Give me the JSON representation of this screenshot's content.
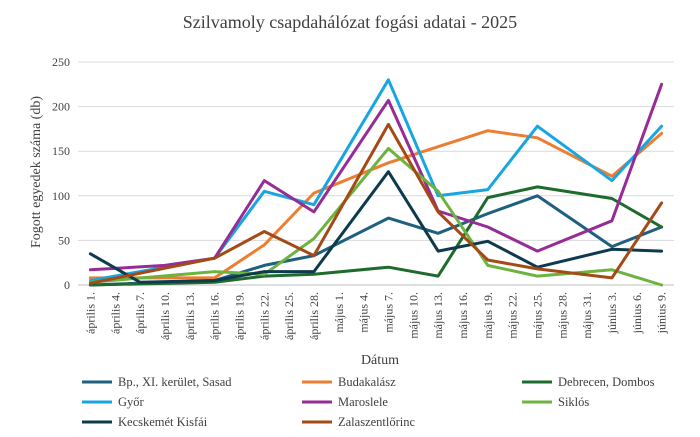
{
  "chart_data": {
    "type": "line",
    "title": "Szilvamoly csapdahálózat fogási adatai - 2025",
    "xlabel": "Dátum",
    "ylabel": "Fogott egyedek száma (db)",
    "ylim": [
      0,
      250
    ],
    "yticks": [
      0,
      50,
      100,
      150,
      200,
      250
    ],
    "grid": true,
    "legend_position": "bottom",
    "categories": [
      "április 1.",
      "április 4.",
      "április 7.",
      "április 10.",
      "április 13.",
      "április 16.",
      "április 19.",
      "április 22.",
      "április 25.",
      "április 28.",
      "május 1.",
      "május 4.",
      "május 7.",
      "május 10.",
      "május 13.",
      "május 16.",
      "május 19.",
      "május 22.",
      "május 25.",
      "május 28.",
      "május 31.",
      "június 3.",
      "június 6.",
      "június 9."
    ],
    "series": [
      {
        "name": "Bp., XI. kerület, Sasad",
        "color": "#1f5f7f",
        "points": [
          [
            0,
            0
          ],
          [
            5,
            5
          ],
          [
            7,
            22
          ],
          [
            9,
            33
          ],
          [
            12,
            75
          ],
          [
            14,
            58
          ],
          [
            16,
            80
          ],
          [
            18,
            100
          ],
          [
            21,
            43
          ],
          [
            23,
            65
          ]
        ]
      },
      {
        "name": "Budakalász",
        "color": "#ed7d31",
        "points": [
          [
            0,
            8
          ],
          [
            5,
            8
          ],
          [
            7,
            45
          ],
          [
            9,
            103
          ],
          [
            12,
            137
          ],
          [
            14,
            155
          ],
          [
            16,
            173
          ],
          [
            18,
            165
          ],
          [
            21,
            122
          ],
          [
            23,
            170
          ]
        ]
      },
      {
        "name": "Debrecen, Dombos",
        "color": "#1e6b2d",
        "points": [
          [
            0,
            0
          ],
          [
            5,
            3
          ],
          [
            7,
            10
          ],
          [
            9,
            12
          ],
          [
            12,
            20
          ],
          [
            14,
            10
          ],
          [
            16,
            98
          ],
          [
            18,
            110
          ],
          [
            21,
            97
          ],
          [
            23,
            65
          ]
        ]
      },
      {
        "name": "Győr",
        "color": "#18a6e0",
        "points": [
          [
            0,
            5
          ],
          [
            5,
            30
          ],
          [
            7,
            105
          ],
          [
            9,
            90
          ],
          [
            12,
            230
          ],
          [
            14,
            100
          ],
          [
            16,
            107
          ],
          [
            18,
            178
          ],
          [
            21,
            117
          ],
          [
            23,
            178
          ]
        ]
      },
      {
        "name": "Maroslele",
        "color": "#962c96",
        "points": [
          [
            0,
            17
          ],
          [
            3,
            22
          ],
          [
            5,
            30
          ],
          [
            7,
            117
          ],
          [
            9,
            82
          ],
          [
            12,
            207
          ],
          [
            14,
            83
          ],
          [
            16,
            65
          ],
          [
            18,
            38
          ],
          [
            21,
            72
          ],
          [
            23,
            225
          ]
        ]
      },
      {
        "name": "Siklós",
        "color": "#6cb33f",
        "points": [
          [
            0,
            3
          ],
          [
            5,
            15
          ],
          [
            7,
            12
          ],
          [
            9,
            52
          ],
          [
            12,
            153
          ],
          [
            14,
            105
          ],
          [
            16,
            22
          ],
          [
            18,
            10
          ],
          [
            21,
            17
          ],
          [
            23,
            0
          ]
        ]
      },
      {
        "name": "Kecskemét Kisfái",
        "color": "#0e3a4d",
        "points": [
          [
            0,
            35
          ],
          [
            2,
            3
          ],
          [
            5,
            5
          ],
          [
            7,
            15
          ],
          [
            9,
            15
          ],
          [
            12,
            127
          ],
          [
            14,
            38
          ],
          [
            16,
            49
          ],
          [
            18,
            20
          ],
          [
            21,
            40
          ],
          [
            23,
            38
          ]
        ]
      },
      {
        "name": "Zalaszentlőrinc",
        "color": "#a34a17",
        "points": [
          [
            0,
            2
          ],
          [
            5,
            30
          ],
          [
            7,
            60
          ],
          [
            9,
            33
          ],
          [
            12,
            180
          ],
          [
            14,
            82
          ],
          [
            16,
            28
          ],
          [
            18,
            18
          ],
          [
            21,
            8
          ],
          [
            23,
            92
          ]
        ]
      }
    ]
  }
}
